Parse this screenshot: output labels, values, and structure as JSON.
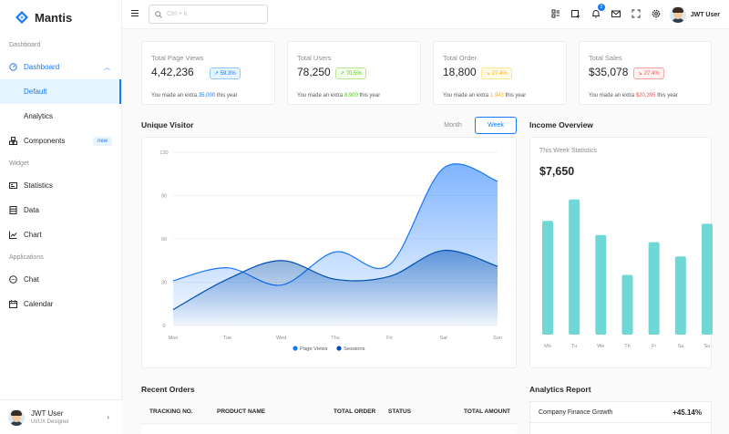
{
  "app": {
    "name": "Mantis"
  },
  "sidebar": {
    "groups": {
      "dashboard": "Dashboard",
      "widget": "Widget",
      "applications": "Applications"
    },
    "dashboard_label": "Dashboard",
    "default_label": "Default",
    "analytics_label": "Analytics",
    "components_label": "Components",
    "components_badge": "new",
    "statistics_label": "Statistics",
    "data_label": "Data",
    "chart_label": "Chart",
    "chat_label": "Chat",
    "calendar_label": "Calendar",
    "user": {
      "name": "JWT User",
      "role": "UI/UX Designer"
    }
  },
  "header": {
    "search_placeholder": "Ctrl + k",
    "notification_count": "2",
    "user_name": "JWT User"
  },
  "stats": [
    {
      "title": "Total Page Views",
      "value": "4,42,236",
      "chip": "59.3%",
      "chip_tone": "blue",
      "foot_pre": "You made an extra ",
      "foot_hl": "35,000",
      "foot_post": " this year"
    },
    {
      "title": "Total Users",
      "value": "78,250",
      "chip": "70.5%",
      "chip_tone": "green",
      "foot_pre": "You made an extra ",
      "foot_hl": "8,900",
      "foot_post": " this year"
    },
    {
      "title": "Total Order",
      "value": "18,800",
      "chip": "27.4%",
      "chip_tone": "orange",
      "foot_pre": "You made an extra ",
      "foot_hl": "1,943",
      "foot_post": " this year"
    },
    {
      "title": "Total Sales",
      "value": "$35,078",
      "chip": "27.4%",
      "chip_tone": "red",
      "foot_pre": "You made an extra ",
      "foot_hl": "$20,395",
      "foot_post": " this year"
    }
  ],
  "unique_visitor": {
    "title": "Unique Visitor",
    "tabs": {
      "month": "Month",
      "week": "Week"
    },
    "legend": [
      "Page Views",
      "Sessions"
    ]
  },
  "income": {
    "title": "Income Overview",
    "label": "This Week Statistics",
    "value": "$7,650"
  },
  "chart_data": [
    {
      "type": "area",
      "categories": [
        "Mon",
        "Tue",
        "Wed",
        "Thu",
        "Fri",
        "Sat",
        "Sun"
      ],
      "ylim": [
        0,
        120
      ],
      "yticks": [
        "0",
        "30",
        "60",
        "90",
        "120"
      ],
      "series": [
        {
          "name": "Page Views",
          "values": [
            31,
            40,
            28,
            51,
            42,
            109,
            100
          ],
          "color": "#1677ff"
        },
        {
          "name": "Sessions",
          "values": [
            11,
            32,
            45,
            32,
            34,
            52,
            41
          ],
          "color": "#0050b3"
        }
      ],
      "grid": true,
      "legend_position": "bottom"
    },
    {
      "type": "bar",
      "categories": [
        "Mo",
        "Tu",
        "We",
        "Th",
        "Fr",
        "Sa",
        "Su"
      ],
      "values": [
        80,
        95,
        70,
        42,
        65,
        55,
        78
      ],
      "color": "#6fd8d6"
    }
  ],
  "recent_orders": {
    "title": "Recent Orders",
    "columns": [
      "TRACKING NO.",
      "PRODUCT NAME",
      "TOTAL ORDER",
      "STATUS",
      "TOTAL AMOUNT"
    ]
  },
  "analytics_report": {
    "title": "Analytics Report",
    "rows": [
      {
        "label": "Company Finance Growth",
        "value": "+45.14%"
      }
    ]
  }
}
